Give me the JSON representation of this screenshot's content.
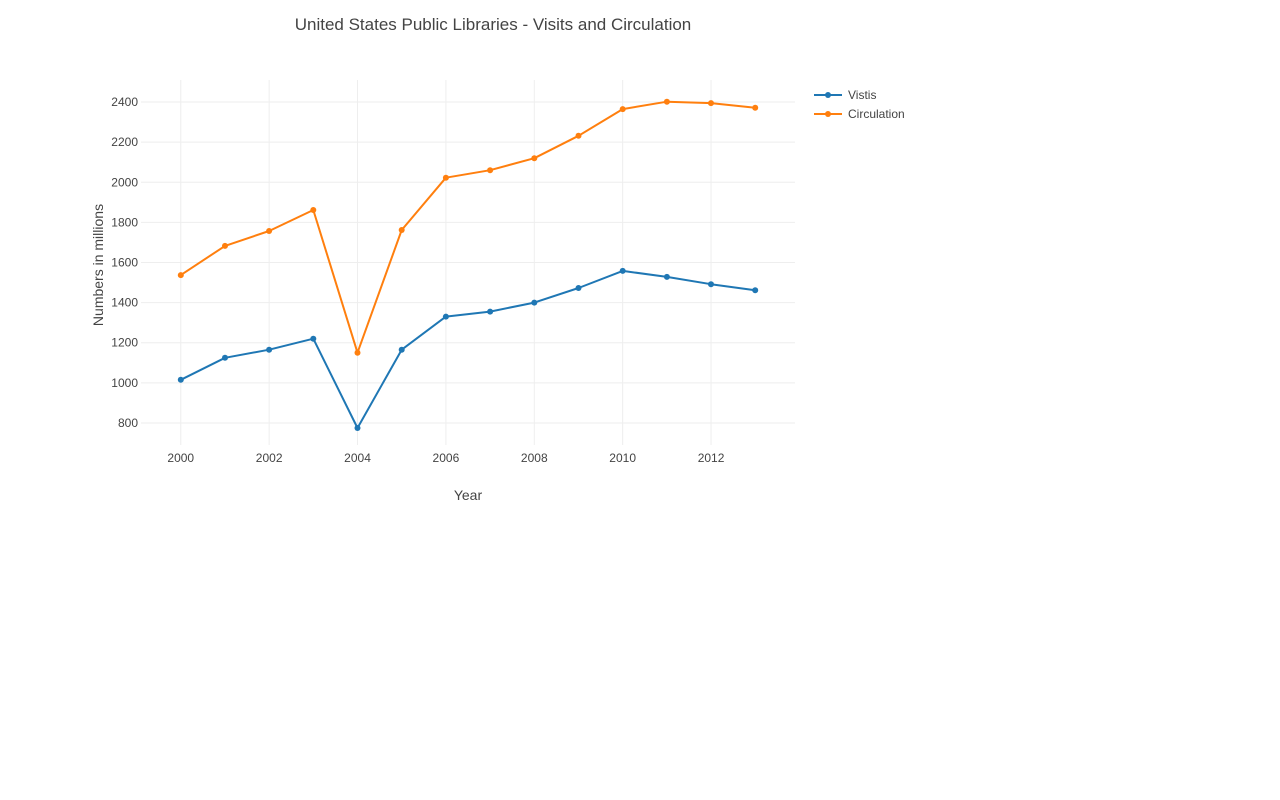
{
  "chart_data": {
    "type": "line",
    "title": "United States Public Libraries - Visits and Circulation",
    "xlabel": "Year",
    "ylabel": "Numbers in millions",
    "x": [
      2000,
      2001,
      2002,
      2003,
      2004,
      2005,
      2006,
      2007,
      2008,
      2009,
      2010,
      2011,
      2012,
      2013
    ],
    "xticks": [
      2000,
      2002,
      2004,
      2006,
      2008,
      2010,
      2012
    ],
    "yticks": [
      800,
      1000,
      1200,
      1400,
      1600,
      1800,
      2000,
      2200,
      2400
    ],
    "xlim": [
      1999.1,
      2013.9
    ],
    "ylim": [
      690,
      2510
    ],
    "grid": true,
    "legend": "top-right",
    "series": [
      {
        "name": "Vistis",
        "color": "#1f77b4",
        "values": [
          1015,
          1125,
          1165,
          1220,
          775,
          1165,
          1330,
          1355,
          1400,
          1473,
          1558,
          1528,
          1492,
          1462
        ]
      },
      {
        "name": "Circulation",
        "color": "#ff7f0e",
        "values": [
          1537,
          1683,
          1757,
          1862,
          1150,
          1762,
          2023,
          2060,
          2120,
          2232,
          2365,
          2402,
          2395,
          2372
        ]
      }
    ]
  }
}
